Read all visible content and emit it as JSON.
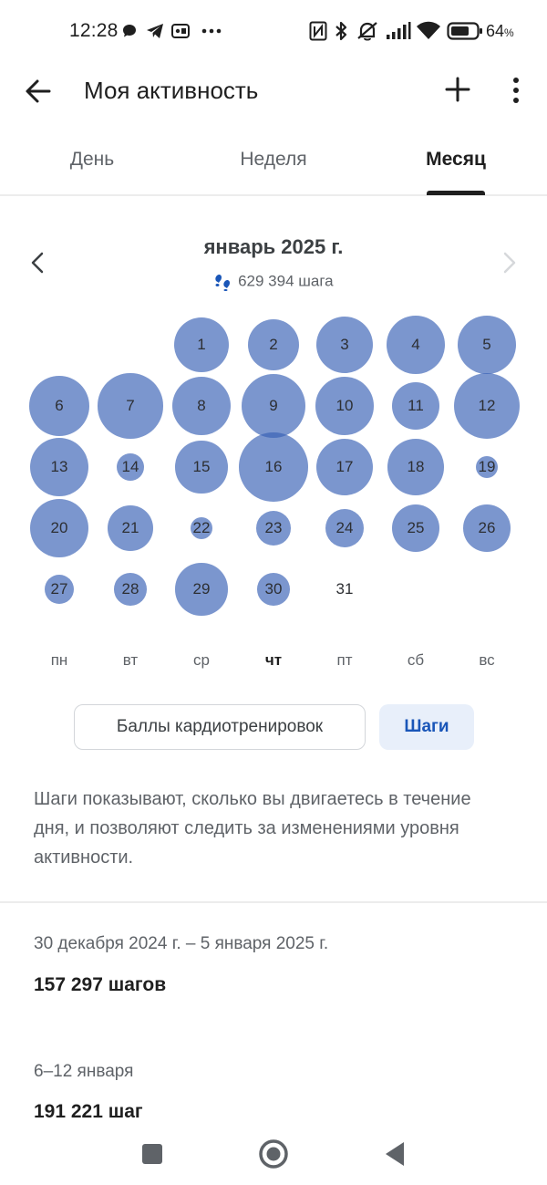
{
  "status_bar": {
    "time": "12:28",
    "battery_percent": "64",
    "battery_unit": "%",
    "notification_icons": [
      "chat-bubble-icon",
      "telegram-icon",
      "vk-icon",
      "more-dots-icon"
    ],
    "system_icons": [
      "nfc-icon",
      "bluetooth-icon",
      "vibrate-off-icon",
      "signal-icon",
      "wifi-icon",
      "battery-icon"
    ]
  },
  "app_bar": {
    "title": "Моя активность"
  },
  "tabs": [
    {
      "label": "День",
      "active": false
    },
    {
      "label": "Неделя",
      "active": false
    },
    {
      "label": "Месяц",
      "active": true
    }
  ],
  "month": {
    "title": "январь 2025 г.",
    "total_steps": "629 394 шага",
    "days": [
      {
        "day": "1",
        "level": 0.56
      },
      {
        "day": "2",
        "level": 0.52
      },
      {
        "day": "3",
        "level": 0.58
      },
      {
        "day": "4",
        "level": 0.59
      },
      {
        "day": "5",
        "level": 0.59
      },
      {
        "day": "6",
        "level": 0.61
      },
      {
        "day": "7",
        "level": 0.66
      },
      {
        "day": "8",
        "level": 0.6
      },
      {
        "day": "9",
        "level": 0.65
      },
      {
        "day": "10",
        "level": 0.59
      },
      {
        "day": "11",
        "level": 0.48
      },
      {
        "day": "12",
        "level": 0.67
      },
      {
        "day": "13",
        "level": 0.6
      },
      {
        "day": "14",
        "level": 0.28
      },
      {
        "day": "15",
        "level": 0.53
      },
      {
        "day": "16",
        "level": 0.7
      },
      {
        "day": "17",
        "level": 0.58
      },
      {
        "day": "18",
        "level": 0.57
      },
      {
        "day": "19",
        "level": 0.23
      },
      {
        "day": "20",
        "level": 0.6
      },
      {
        "day": "21",
        "level": 0.46
      },
      {
        "day": "22",
        "level": 0.23
      },
      {
        "day": "23",
        "level": 0.35
      },
      {
        "day": "24",
        "level": 0.39
      },
      {
        "day": "25",
        "level": 0.48
      },
      {
        "day": "26",
        "level": 0.48
      },
      {
        "day": "27",
        "level": 0.3
      },
      {
        "day": "28",
        "level": 0.33
      },
      {
        "day": "29",
        "level": 0.53
      },
      {
        "day": "30",
        "level": 0.33
      },
      {
        "day": "31",
        "level": 0
      }
    ],
    "weekdays": [
      {
        "label": "пн",
        "today": false
      },
      {
        "label": "вт",
        "today": false
      },
      {
        "label": "ср",
        "today": false
      },
      {
        "label": "чт",
        "today": true
      },
      {
        "label": "пт",
        "today": false
      },
      {
        "label": "сб",
        "today": false
      },
      {
        "label": "вс",
        "today": false
      }
    ]
  },
  "metric_chips": {
    "cardio_label": "Баллы кардиотренировок",
    "steps_label": "Шаги",
    "selected": "steps"
  },
  "description": "Шаги показывают, сколько вы двигаетесь в течение дня, и позволяют следить за изменениями уровня активности.",
  "weeks": [
    {
      "range": "30 декабря 2024 г. – 5 января 2025 г.",
      "steps": "157 297 шагов"
    },
    {
      "range": "6–12 января",
      "steps": "191 221 шаг"
    }
  ],
  "colors": {
    "bubble": "#375fb4",
    "accent": "#1a56b8",
    "chip_selected_bg": "#e8effa"
  }
}
